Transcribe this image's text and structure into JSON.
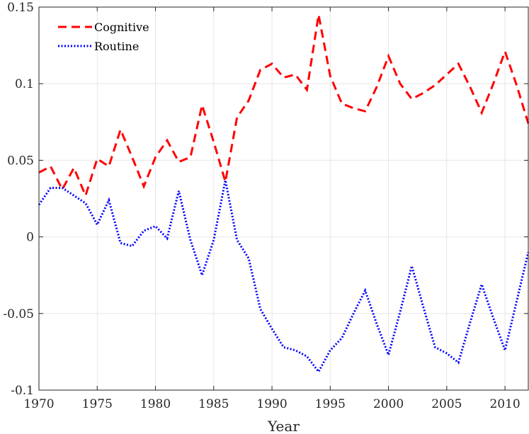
{
  "chart_data": {
    "type": "line",
    "xlabel": "Year",
    "ylabel": "",
    "xlim": [
      1970,
      2012
    ],
    "ylim": [
      -0.1,
      0.15
    ],
    "xticks": [
      1970,
      1975,
      1980,
      1985,
      1990,
      1995,
      2000,
      2005,
      2010
    ],
    "xtick_labels": [
      "1970",
      "1975",
      "1980",
      "1985",
      "1990",
      "1995",
      "2000",
      "2005",
      "2010"
    ],
    "yticks": [
      -0.1,
      -0.05,
      0,
      0.05,
      0.1,
      0.15
    ],
    "ytick_labels": [
      "-0.1",
      "-0.05",
      "0",
      "0.05",
      "0.1",
      "0.15"
    ],
    "grid": true,
    "legend_position": "top-left",
    "x": [
      1970,
      1971,
      1972,
      1973,
      1974,
      1975,
      1976,
      1977,
      1978,
      1979,
      1980,
      1981,
      1982,
      1983,
      1984,
      1985,
      1986,
      1987,
      1988,
      1989,
      1990,
      1991,
      1992,
      1993,
      1994,
      1995,
      1996,
      1997,
      1998,
      1999,
      2000,
      2001,
      2002,
      2003,
      2004,
      2005,
      2006,
      2007,
      2008,
      2009,
      2010,
      2011,
      2012
    ],
    "series": [
      {
        "name": "Cognitive",
        "color": "#ff0000",
        "style": "dashed",
        "values": [
          0.042,
          0.046,
          0.031,
          0.045,
          0.027,
          0.051,
          0.046,
          0.07,
          0.052,
          0.033,
          0.052,
          0.063,
          0.049,
          0.052,
          0.086,
          0.062,
          0.036,
          0.078,
          0.089,
          0.109,
          0.113,
          0.104,
          0.106,
          0.096,
          0.145,
          0.105,
          0.087,
          0.084,
          0.082,
          0.098,
          0.118,
          0.1,
          0.09,
          0.094,
          0.099,
          0.106,
          0.113,
          0.098,
          0.081,
          0.1,
          0.121,
          0.099,
          0.074
        ]
      },
      {
        "name": "Routine",
        "color": "#0000ff",
        "style": "dotted",
        "values": [
          0.021,
          0.032,
          0.032,
          0.027,
          0.022,
          0.008,
          0.024,
          -0.004,
          -0.006,
          0.004,
          0.007,
          -0.001,
          0.03,
          -0.002,
          -0.025,
          -0.002,
          0.037,
          -0.002,
          -0.014,
          -0.047,
          -0.06,
          -0.072,
          -0.074,
          -0.078,
          -0.088,
          -0.074,
          -0.066,
          -0.05,
          -0.035,
          -0.057,
          -0.077,
          -0.049,
          -0.019,
          -0.046,
          -0.072,
          -0.076,
          -0.082,
          -0.056,
          -0.031,
          -0.053,
          -0.074,
          -0.042,
          -0.01
        ]
      }
    ]
  }
}
